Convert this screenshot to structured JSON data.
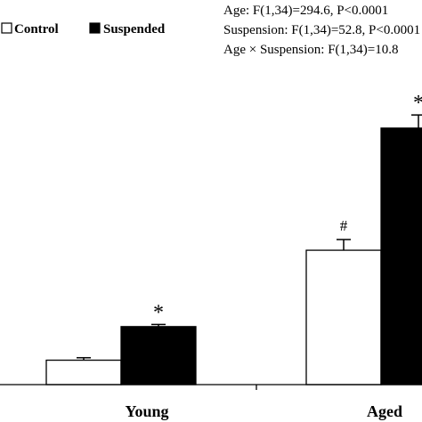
{
  "chart_data": {
    "type": "bar",
    "categories": [
      "Young",
      "Aged"
    ],
    "series": [
      {
        "name": "Control",
        "values": [
          8,
          44
        ],
        "errors": [
          0.8,
          3.5
        ],
        "color": "#ffffff",
        "marker": "#"
      },
      {
        "name": "Suspended",
        "values": [
          19,
          84
        ],
        "errors": [
          0.7,
          4.3
        ],
        "color": "#000000",
        "marker": "*"
      }
    ],
    "bar_markers": [
      [
        "",
        "#"
      ],
      [
        "*",
        "*"
      ]
    ],
    "statistics": [
      "Age: F(1,34)=294.6, P<0.0001",
      "Suspension: F(1,34)=52.8, P<0.0001",
      "Age × Suspension: F(1,34)=10.8"
    ],
    "legend": {
      "placement": "top-left",
      "entries": [
        "Control",
        "Suspended"
      ]
    },
    "ylim": [
      0,
      100
    ],
    "grid": false,
    "title": "",
    "xlabel": "",
    "ylabel": ""
  }
}
